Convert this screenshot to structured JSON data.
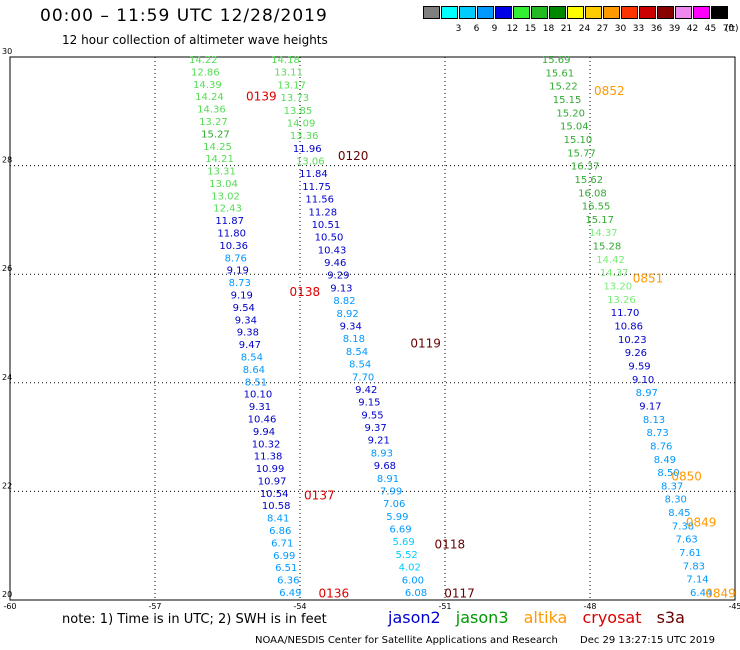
{
  "header": {
    "title": "00:00 – 11:59 UTC 12/28/2019",
    "subtitle": "12 hour collection of altimeter wave heights"
  },
  "colorbar": {
    "unit": "(ft)",
    "swatches": [
      {
        "color": "#7f7f7f",
        "label": ""
      },
      {
        "color": "#00ffff",
        "label": "3"
      },
      {
        "color": "#00ccff",
        "label": "6"
      },
      {
        "color": "#0099ff",
        "label": "9"
      },
      {
        "color": "#0000e6",
        "label": "12"
      },
      {
        "color": "#33ee33",
        "label": "15"
      },
      {
        "color": "#22bb22",
        "label": "18"
      },
      {
        "color": "#008800",
        "label": "21"
      },
      {
        "color": "#ffff00",
        "label": "24"
      },
      {
        "color": "#ffcc00",
        "label": "27"
      },
      {
        "color": "#ff9900",
        "label": "30"
      },
      {
        "color": "#ff3300",
        "label": "33"
      },
      {
        "color": "#cc0000",
        "label": "36"
      },
      {
        "color": "#880000",
        "label": "39"
      },
      {
        "color": "#ee88ee",
        "label": "42"
      },
      {
        "color": "#ff00ff",
        "label": "45"
      },
      {
        "color": "#000000",
        "label": "70"
      }
    ]
  },
  "note": "note: 1) Time is in UTC; 2) SWH is in feet",
  "legend": [
    {
      "name": "jason2",
      "color": "#0000cc"
    },
    {
      "name": "jason3",
      "color": "#009900"
    },
    {
      "name": "altika",
      "color": "#ff9900"
    },
    {
      "name": "cryosat",
      "color": "#dd0000"
    },
    {
      "name": "s3a",
      "color": "#660000"
    }
  ],
  "footer": {
    "credit": "NOAA/NESDIS Center for Satellite Applications and Research",
    "timestamp": "Dec 29 13:27:15 UTC 2019"
  },
  "chart_data": {
    "type": "scatter",
    "title": "00:00 – 11:59 UTC 12/28/2019",
    "subtitle": "12 hour collection of altimeter wave heights",
    "xlim": [
      -60,
      -45
    ],
    "ylim": [
      20,
      30
    ],
    "x_ticks": [
      "-60",
      "-57",
      "-54",
      "-51",
      "-48",
      "-45"
    ],
    "y_ticks": [
      "20",
      "22",
      "24",
      "26",
      "28",
      "30"
    ],
    "grid": true,
    "tracks": [
      {
        "name": "track-left",
        "x_start": -56.0,
        "x_end": -54.2,
        "values": [
          {
            "v": "14.22",
            "c": "#55dd55"
          },
          {
            "v": "12.86",
            "c": "#55dd55"
          },
          {
            "v": "14.39",
            "c": "#55dd55"
          },
          {
            "v": "14.24",
            "c": "#55dd55"
          },
          {
            "v": "14.36",
            "c": "#55dd55"
          },
          {
            "v": "13.27",
            "c": "#55dd55"
          },
          {
            "v": "15.27",
            "c": "#33aa33"
          },
          {
            "v": "14.25",
            "c": "#55dd55"
          },
          {
            "v": "14.21",
            "c": "#55dd55"
          },
          {
            "v": "13.31",
            "c": "#55dd55"
          },
          {
            "v": "13.04",
            "c": "#55dd55"
          },
          {
            "v": "13.02",
            "c": "#55dd55"
          },
          {
            "v": "12.43",
            "c": "#55dd55"
          },
          {
            "v": "11.87",
            "c": "#0000cc"
          },
          {
            "v": "11.80",
            "c": "#0000cc"
          },
          {
            "v": "10.36",
            "c": "#0000cc"
          },
          {
            "v": "8.76",
            "c": "#0099ff"
          },
          {
            "v": "9.19",
            "c": "#0000cc"
          },
          {
            "v": "8.73",
            "c": "#0099ff"
          },
          {
            "v": "9.19",
            "c": "#0000cc"
          },
          {
            "v": "9.54",
            "c": "#0000cc"
          },
          {
            "v": "9.34",
            "c": "#0000cc"
          },
          {
            "v": "9.38",
            "c": "#0000cc"
          },
          {
            "v": "9.47",
            "c": "#0000cc"
          },
          {
            "v": "8.54",
            "c": "#0099ff"
          },
          {
            "v": "8.64",
            "c": "#0099ff"
          },
          {
            "v": "8.51",
            "c": "#0099ff"
          },
          {
            "v": "10.10",
            "c": "#0000cc"
          },
          {
            "v": "9.31",
            "c": "#0000cc"
          },
          {
            "v": "10.46",
            "c": "#0000cc"
          },
          {
            "v": "9.94",
            "c": "#0000cc"
          },
          {
            "v": "10.32",
            "c": "#0000cc"
          },
          {
            "v": "11.38",
            "c": "#0000cc"
          },
          {
            "v": "10.99",
            "c": "#0000cc"
          },
          {
            "v": "10.97",
            "c": "#0000cc"
          },
          {
            "v": "10.54",
            "c": "#0000cc"
          },
          {
            "v": "10.58",
            "c": "#0000cc"
          },
          {
            "v": "8.41",
            "c": "#0099ff"
          },
          {
            "v": "6.86",
            "c": "#0099ff"
          },
          {
            "v": "6.71",
            "c": "#0099ff"
          },
          {
            "v": "6.99",
            "c": "#0099ff"
          },
          {
            "v": "6.51",
            "c": "#0099ff"
          },
          {
            "v": "6.36",
            "c": "#0099ff"
          },
          {
            "v": "6.49",
            "c": "#0099ff"
          }
        ]
      },
      {
        "name": "track-middle",
        "x_start": -54.3,
        "x_end": -51.6,
        "values": [
          {
            "v": "14.18",
            "c": "#55dd55"
          },
          {
            "v": "13.11",
            "c": "#55dd55"
          },
          {
            "v": "13.17",
            "c": "#55dd55"
          },
          {
            "v": "13.73",
            "c": "#55dd55"
          },
          {
            "v": "13.85",
            "c": "#55dd55"
          },
          {
            "v": "14.09",
            "c": "#55dd55"
          },
          {
            "v": "13.36",
            "c": "#55dd55"
          },
          {
            "v": "11.96",
            "c": "#0000cc"
          },
          {
            "v": "13.06",
            "c": "#55dd55"
          },
          {
            "v": "11.84",
            "c": "#0000cc"
          },
          {
            "v": "11.75",
            "c": "#0000cc"
          },
          {
            "v": "11.56",
            "c": "#0000cc"
          },
          {
            "v": "11.28",
            "c": "#0000cc"
          },
          {
            "v": "10.51",
            "c": "#0000cc"
          },
          {
            "v": "10.50",
            "c": "#0000cc"
          },
          {
            "v": "10.43",
            "c": "#0000cc"
          },
          {
            "v": "9.46",
            "c": "#0000cc"
          },
          {
            "v": "9.29",
            "c": "#0000cc"
          },
          {
            "v": "9.13",
            "c": "#0000cc"
          },
          {
            "v": "8.82",
            "c": "#0099ff"
          },
          {
            "v": "8.92",
            "c": "#0099ff"
          },
          {
            "v": "9.34",
            "c": "#0000cc"
          },
          {
            "v": "8.18",
            "c": "#0099ff"
          },
          {
            "v": "8.54",
            "c": "#0099ff"
          },
          {
            "v": "8.54",
            "c": "#0099ff"
          },
          {
            "v": "7.70",
            "c": "#0099ff"
          },
          {
            "v": "9.42",
            "c": "#0000cc"
          },
          {
            "v": "9.15",
            "c": "#0000cc"
          },
          {
            "v": "9.55",
            "c": "#0000cc"
          },
          {
            "v": "9.37",
            "c": "#0000cc"
          },
          {
            "v": "9.21",
            "c": "#0000cc"
          },
          {
            "v": "8.93",
            "c": "#0099ff"
          },
          {
            "v": "9.68",
            "c": "#0000cc"
          },
          {
            "v": "8.91",
            "c": "#0099ff"
          },
          {
            "v": "7.99",
            "c": "#0099ff"
          },
          {
            "v": "7.06",
            "c": "#0099ff"
          },
          {
            "v": "5.99",
            "c": "#0099ff"
          },
          {
            "v": "6.69",
            "c": "#0099ff"
          },
          {
            "v": "5.69",
            "c": "#00ccff"
          },
          {
            "v": "5.52",
            "c": "#00ccff"
          },
          {
            "v": "4.02",
            "c": "#00ccff"
          },
          {
            "v": "6.00",
            "c": "#0099ff"
          },
          {
            "v": "6.08",
            "c": "#0099ff"
          }
        ]
      },
      {
        "name": "track-right",
        "x_start": -48.7,
        "x_end": -45.7,
        "values": [
          {
            "v": "15.69",
            "c": "#33aa33"
          },
          {
            "v": "15.61",
            "c": "#33aa33"
          },
          {
            "v": "15.22",
            "c": "#33aa33"
          },
          {
            "v": "15.15",
            "c": "#33aa33"
          },
          {
            "v": "15.20",
            "c": "#33aa33"
          },
          {
            "v": "15.04",
            "c": "#33aa33"
          },
          {
            "v": "15.10",
            "c": "#33aa33"
          },
          {
            "v": "15.77",
            "c": "#33aa33"
          },
          {
            "v": "16.37",
            "c": "#33aa33"
          },
          {
            "v": "15.62",
            "c": "#33aa33"
          },
          {
            "v": "16.08",
            "c": "#33aa33"
          },
          {
            "v": "16.55",
            "c": "#33aa33"
          },
          {
            "v": "15.17",
            "c": "#33aa33"
          },
          {
            "v": "14.37",
            "c": "#77ee77"
          },
          {
            "v": "15.28",
            "c": "#33aa33"
          },
          {
            "v": "14.42",
            "c": "#77ee77"
          },
          {
            "v": "14.37",
            "c": "#77ee77"
          },
          {
            "v": "13.20",
            "c": "#77ee77"
          },
          {
            "v": "13.26",
            "c": "#77ee77"
          },
          {
            "v": "11.70",
            "c": "#0000cc"
          },
          {
            "v": "10.86",
            "c": "#0000cc"
          },
          {
            "v": "10.23",
            "c": "#0000cc"
          },
          {
            "v": "9.26",
            "c": "#0000cc"
          },
          {
            "v": "9.59",
            "c": "#0000cc"
          },
          {
            "v": "9.10",
            "c": "#0000cc"
          },
          {
            "v": "8.97",
            "c": "#0099ff"
          },
          {
            "v": "9.17",
            "c": "#0000cc"
          },
          {
            "v": "8.13",
            "c": "#0099ff"
          },
          {
            "v": "8.73",
            "c": "#0099ff"
          },
          {
            "v": "8.76",
            "c": "#0099ff"
          },
          {
            "v": "8.49",
            "c": "#0099ff"
          },
          {
            "v": "8.50",
            "c": "#0099ff"
          },
          {
            "v": "8.37",
            "c": "#0099ff"
          },
          {
            "v": "8.30",
            "c": "#0099ff"
          },
          {
            "v": "8.45",
            "c": "#0099ff"
          },
          {
            "v": "7.38",
            "c": "#0099ff"
          },
          {
            "v": "7.63",
            "c": "#0099ff"
          },
          {
            "v": "7.61",
            "c": "#0099ff"
          },
          {
            "v": "7.83",
            "c": "#0099ff"
          },
          {
            "v": "7.14",
            "c": "#0099ff"
          },
          {
            "v": "6.44",
            "c": "#0099ff"
          }
        ]
      }
    ],
    "time_labels": [
      {
        "text": "0139",
        "x": -54.8,
        "y": 29.2,
        "color": "#dd0000"
      },
      {
        "text": "0138",
        "x": -53.9,
        "y": 25.6,
        "color": "#dd0000"
      },
      {
        "text": "0137",
        "x": -53.6,
        "y": 21.85,
        "color": "#dd0000"
      },
      {
        "text": "0136",
        "x": -53.3,
        "y": 20.05,
        "color": "#dd0000"
      },
      {
        "text": "0120",
        "x": -52.9,
        "y": 28.1,
        "color": "#660000"
      },
      {
        "text": "0119",
        "x": -51.4,
        "y": 24.65,
        "color": "#660000"
      },
      {
        "text": "0118",
        "x": -50.9,
        "y": 20.95,
        "color": "#660000"
      },
      {
        "text": "0117",
        "x": -50.7,
        "y": 20.05,
        "color": "#660000"
      },
      {
        "text": "0852",
        "x": -47.6,
        "y": 29.3,
        "color": "#ff9900"
      },
      {
        "text": "0851",
        "x": -46.8,
        "y": 25.85,
        "color": "#ff9900"
      },
      {
        "text": "0850",
        "x": -46.0,
        "y": 22.2,
        "color": "#ff9900"
      },
      {
        "text": "0849",
        "x": -45.7,
        "y": 21.35,
        "color": "#ff9900"
      },
      {
        "text": "0849",
        "x": -45.3,
        "y": 20.05,
        "color": "#ff9900"
      }
    ]
  }
}
